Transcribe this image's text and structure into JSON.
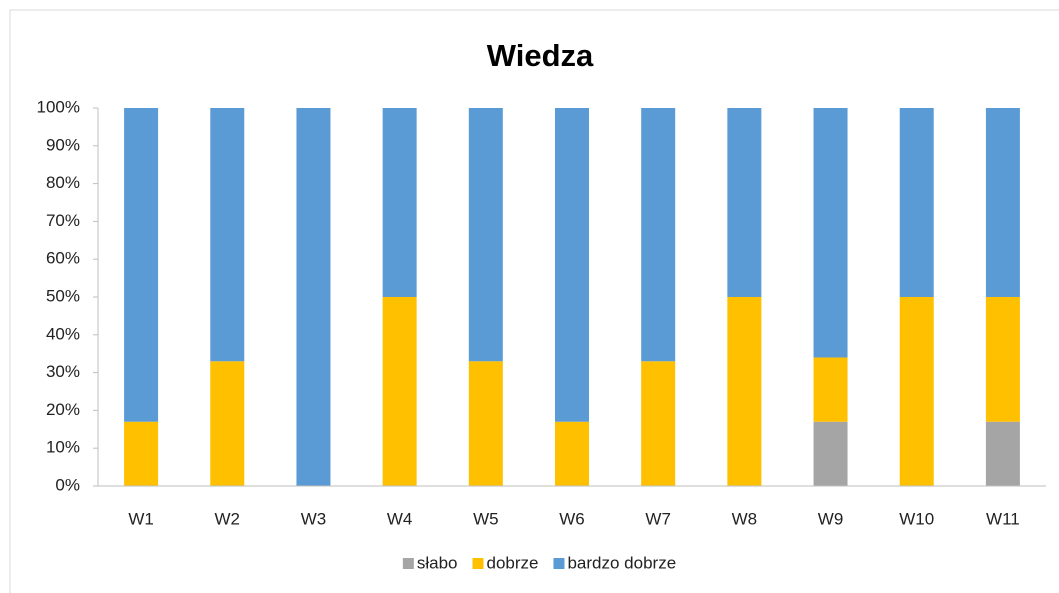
{
  "chart_data": {
    "type": "stacked_bar",
    "title": "Wiedza",
    "categories": [
      "W1",
      "W2",
      "W3",
      "W4",
      "W5",
      "W6",
      "W7",
      "W8",
      "W9",
      "W10",
      "W11"
    ],
    "series": [
      {
        "name": "słabo",
        "color": "#a5a5a5",
        "values": [
          0,
          0,
          0,
          0,
          0,
          0,
          0,
          0,
          17,
          0,
          17
        ]
      },
      {
        "name": "dobrze",
        "color": "#ffc000",
        "values": [
          17,
          33,
          0,
          50,
          33,
          17,
          33,
          50,
          17,
          50,
          33
        ]
      },
      {
        "name": "bardzo dobrze",
        "color": "#5b9bd5",
        "values": [
          83,
          67,
          100,
          50,
          67,
          83,
          67,
          50,
          66,
          50,
          50
        ]
      }
    ],
    "ylim": [
      0,
      100
    ],
    "yticks": [
      {
        "value": 0,
        "label": "0%"
      },
      {
        "value": 10,
        "label": "10%"
      },
      {
        "value": 20,
        "label": "20%"
      },
      {
        "value": 30,
        "label": "30%"
      },
      {
        "value": 40,
        "label": "40%"
      },
      {
        "value": 50,
        "label": "50%"
      },
      {
        "value": 60,
        "label": "60%"
      },
      {
        "value": 70,
        "label": "70%"
      },
      {
        "value": 80,
        "label": "80%"
      },
      {
        "value": 90,
        "label": "90%"
      },
      {
        "value": 100,
        "label": "100%"
      }
    ],
    "grid": false,
    "legend": "bottom"
  }
}
